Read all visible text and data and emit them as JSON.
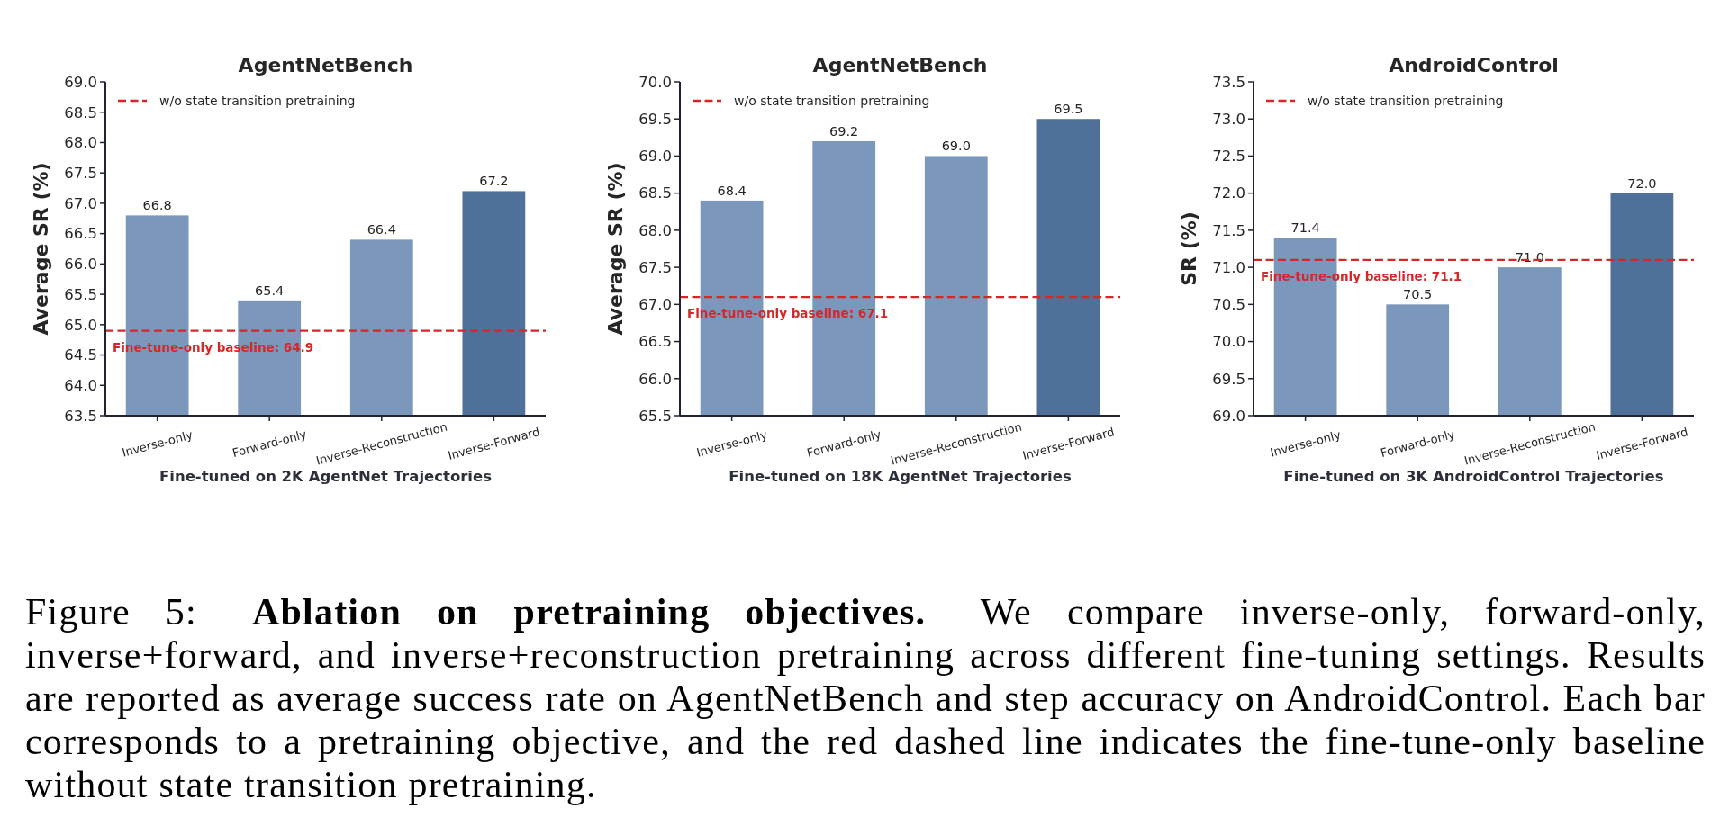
{
  "chart_data": [
    {
      "type": "bar",
      "title": "AgentNetBench",
      "xlabel": "Fine-tuned on 2K AgentNet Trajectories",
      "ylabel": "Average SR (%)",
      "categories": [
        "Inverse-only",
        "Forward-only",
        "Inverse-Reconstruction",
        "Inverse-Forward"
      ],
      "values": [
        66.8,
        65.4,
        66.4,
        67.2
      ],
      "colors": [
        "#7b97bb",
        "#7b97bb",
        "#7b97bb",
        "#4e7099"
      ],
      "value_labels": [
        "66.8",
        "65.4",
        "66.4",
        "67.2"
      ],
      "ylim": [
        63.5,
        69
      ],
      "yticks": [
        63.5,
        {
          "value": 64,
          "label": "64.0"
        },
        64.5,
        {
          "value": 65,
          "label": "65.0"
        },
        65.5,
        {
          "value": 66,
          "label": "66.0"
        },
        66.5,
        {
          "value": 67,
          "label": "67.0"
        },
        67.5,
        {
          "value": 68,
          "label": "68.0"
        },
        68.5,
        {
          "value": 69,
          "label": "69.0"
        }
      ],
      "ref_lines": [
        {
          "axis": "y",
          "value": 64.9,
          "label": "w/o state transition pretraining",
          "color": "#d62728",
          "line_style": "dashed"
        }
      ],
      "annotations": [
        {
          "text": "Fine-tune-only baseline: 64.9",
          "y": 64.9
        }
      ],
      "legend": "top left"
    },
    {
      "type": "bar",
      "title": "AgentNetBench",
      "xlabel": "Fine-tuned on 18K AgentNet Trajectories",
      "ylabel": "Average SR (%)",
      "categories": [
        "Inverse-only",
        "Forward-only",
        "Inverse-Reconstruction",
        "Inverse-Forward"
      ],
      "values": [
        68.4,
        69.2,
        69.0,
        69.5
      ],
      "colors": [
        "#7b97bb",
        "#7b97bb",
        "#7b97bb",
        "#4e7099"
      ],
      "value_labels": [
        "68.4",
        "69.2",
        "69.0",
        "69.5"
      ],
      "ylim": [
        65.5,
        70
      ],
      "yticks": [
        65.5,
        {
          "value": 66,
          "label": "66.0"
        },
        66.5,
        {
          "value": 67,
          "label": "67.0"
        },
        67.5,
        {
          "value": 68,
          "label": "68.0"
        },
        68.5,
        {
          "value": 69,
          "label": "69.0"
        },
        69.5,
        {
          "value": 70,
          "label": "70.0"
        }
      ],
      "ref_lines": [
        {
          "axis": "y",
          "value": 67.1,
          "label": "w/o state transition pretraining",
          "color": "#d62728",
          "line_style": "dashed"
        }
      ],
      "annotations": [
        {
          "text": "Fine-tune-only baseline: 67.1",
          "y": 67.1
        }
      ],
      "legend": "top left"
    },
    {
      "type": "bar",
      "title": "AndroidControl",
      "xlabel": "Fine-tuned on 3K AndroidControl Trajectories",
      "ylabel": "SR (%)",
      "categories": [
        "Inverse-only",
        "Forward-only",
        "Inverse-Reconstruction",
        "Inverse-Forward"
      ],
      "values": [
        71.4,
        70.5,
        71.0,
        72.0
      ],
      "colors": [
        "#7b97bb",
        "#7b97bb",
        "#7b97bb",
        "#4e7099"
      ],
      "value_labels": [
        "71.4",
        "70.5",
        "71.0",
        "72.0"
      ],
      "ylim": [
        69,
        73.5
      ],
      "yticks": [
        {
          "value": 69,
          "label": "69.0"
        },
        69.5,
        {
          "value": 70,
          "label": "70.0"
        },
        70.5,
        {
          "value": 71,
          "label": "71.0"
        },
        71.5,
        {
          "value": 72,
          "label": "72.0"
        },
        72.5,
        {
          "value": 73,
          "label": "73.0"
        },
        73.5
      ],
      "ref_lines": [
        {
          "axis": "y",
          "value": 71.1,
          "label": "w/o state transition pretraining",
          "color": "#d62728",
          "line_style": "dashed"
        }
      ],
      "annotations": [
        {
          "text": "Fine-tune-only baseline: 71.1",
          "y": 71.1
        }
      ],
      "legend": "top left"
    },
    {
      "type": "other",
      "annotations": [
        "Figure 5:",
        "Ablation on pretraining objectives.",
        "We compare inverse-only, forward-only,",
        "inverse+forward, and inverse+reconstruction pretraining across different fine-tuning settings. Results are reported as average success rate on AgentNetBench and step accuracy on AndroidControl. Each bar corresponds to a pretraining objective, and the red dashed line indicates the fine-tune-only baseline without state transition pretraining."
      ]
    }
  ]
}
